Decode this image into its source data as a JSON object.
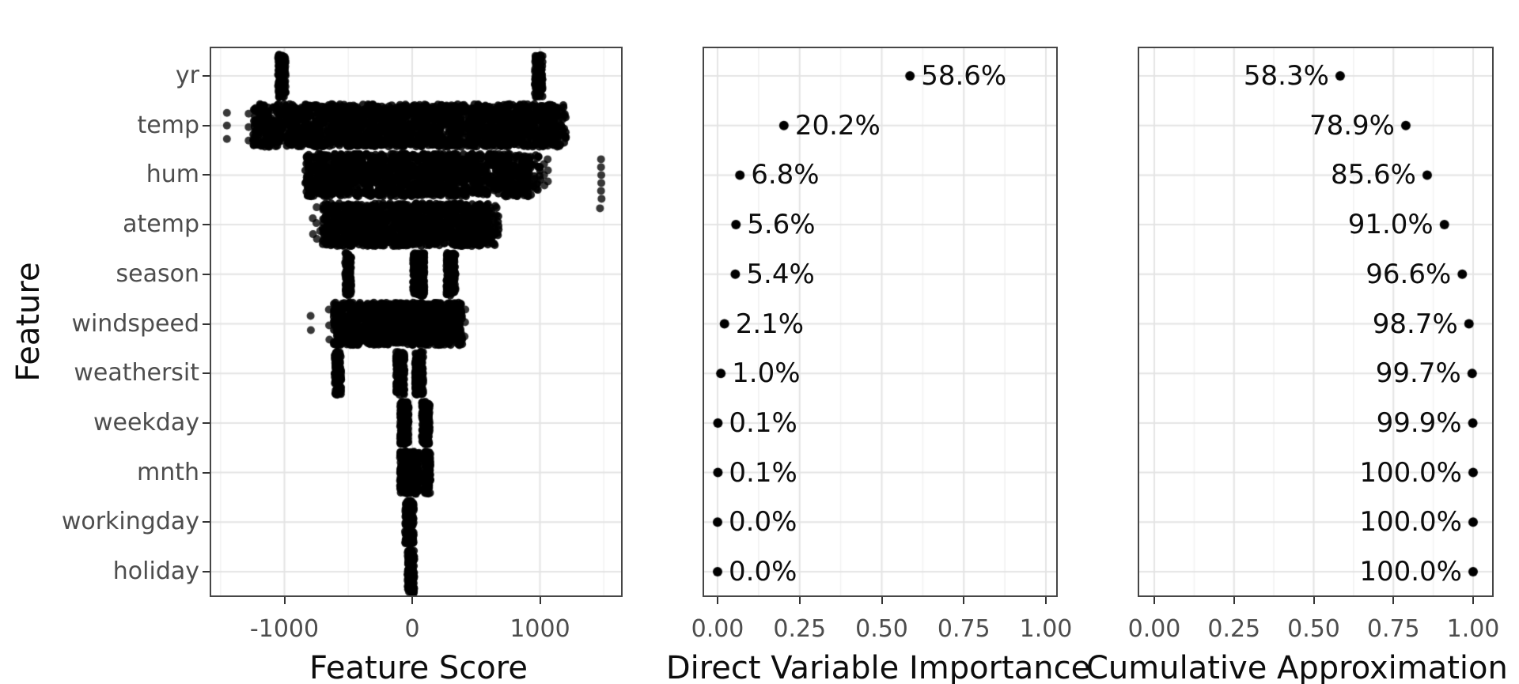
{
  "colors": {
    "background": "#ffffff",
    "panel_border": "#464646",
    "grid_major": "#e4e4e4",
    "grid_minor": "#f1f1f1",
    "axis_text": "#4d4d4d",
    "title_text": "#0d0d0d",
    "point": "#000000"
  },
  "features": [
    "yr",
    "temp",
    "hum",
    "atemp",
    "season",
    "windspeed",
    "weathersit",
    "weekday",
    "mnth",
    "workingday",
    "holiday"
  ],
  "chart_data": [
    {
      "type": "scatter",
      "subtype": "jittered-strip",
      "title": "",
      "xlabel": "Feature Score",
      "ylabel": "Feature",
      "categories": [
        "yr",
        "temp",
        "hum",
        "atemp",
        "season",
        "windspeed",
        "weathersit",
        "weekday",
        "mnth",
        "workingday",
        "holiday"
      ],
      "x_ticks": [
        -1000,
        0,
        1000
      ],
      "x_tick_labels": [
        "-1000",
        "0",
        "1000"
      ],
      "x_minor_ticks": [
        -1500,
        -500,
        500,
        1500
      ],
      "xlim": [
        -1573,
        1635
      ],
      "grid": true,
      "distributions": [
        {
          "feature": "yr",
          "segments": [
            [
              -1050,
              -990,
              140
            ],
            [
              960,
              1020,
              140
            ]
          ],
          "points": []
        },
        {
          "feature": "temp",
          "segments": [
            [
              -1245,
              -930,
              240
            ],
            [
              -930,
              1140,
              1950
            ],
            [
              1140,
              1208,
              26
            ]
          ],
          "points": [
            [
              -1450,
              -16
            ],
            [
              -1450,
              0
            ],
            [
              -1450,
              17
            ],
            [
              -1280,
              -15
            ],
            [
              -1280,
              2
            ],
            [
              -1280,
              19
            ]
          ]
        },
        {
          "feature": "hum",
          "segments": [
            [
              -838,
              918,
              1600
            ],
            [
              918,
              1005,
              28
            ]
          ],
          "points": [
            [
              1032,
              -14
            ],
            [
              1032,
              0
            ],
            [
              1035,
              13
            ],
            [
              1060,
              -20
            ],
            [
              1062,
              -6
            ],
            [
              1062,
              8
            ],
            [
              1478,
              -20
            ],
            [
              1478,
              -10
            ],
            [
              1480,
              0
            ],
            [
              1480,
              10
            ],
            [
              1478,
              20
            ],
            [
              1482,
              30
            ],
            [
              1470,
              42
            ]
          ]
        },
        {
          "feature": "atemp",
          "segments": [
            [
              -702,
              602,
              1250
            ],
            [
              602,
              678,
              32
            ]
          ],
          "points": [
            [
              -778,
              -8
            ],
            [
              -776,
              12
            ],
            [
              -748,
              -22
            ],
            [
              -750,
              -2
            ],
            [
              -746,
              18
            ],
            [
              -720,
              8
            ]
          ]
        },
        {
          "feature": "season",
          "segments": [
            [
              -525,
              -478,
              140
            ],
            [
              8,
              95,
              300
            ],
            [
              268,
              338,
              180
            ]
          ],
          "points": []
        },
        {
          "feature": "windspeed",
          "segments": [
            [
              -615,
              392,
              1300
            ]
          ],
          "points": [
            [
              -795,
              -10
            ],
            [
              -793,
              8
            ],
            [
              -652,
              -18
            ],
            [
              -650,
              2
            ],
            [
              -648,
              20
            ],
            [
              414,
              -2
            ],
            [
              410,
              16
            ],
            [
              416,
              -18
            ]
          ]
        },
        {
          "feature": "weathersit",
          "segments": [
            [
              -606,
              -556,
              140
            ],
            [
              -126,
              -60,
              190
            ],
            [
              22,
              86,
              190
            ]
          ],
          "points": []
        },
        {
          "feature": "weekday",
          "segments": [
            [
              -94,
              -28,
              190
            ],
            [
              76,
              136,
              190
            ]
          ],
          "points": []
        },
        {
          "feature": "mnth",
          "segments": [
            [
              -96,
              56,
              360
            ],
            [
              96,
              142,
              150
            ]
          ],
          "points": []
        },
        {
          "feature": "workingday",
          "segments": [
            [
              -56,
              12,
              200
            ]
          ],
          "points": []
        },
        {
          "feature": "holiday",
          "segments": [
            [
              -36,
              16,
              170
            ]
          ],
          "points": []
        }
      ]
    },
    {
      "type": "scatter",
      "subtype": "labeled-dot",
      "title": "",
      "xlabel": "Direct Variable Importance",
      "categories": [
        "yr",
        "temp",
        "hum",
        "atemp",
        "season",
        "windspeed",
        "weathersit",
        "weekday",
        "mnth",
        "workingday",
        "holiday"
      ],
      "values": [
        0.586,
        0.202,
        0.068,
        0.056,
        0.054,
        0.021,
        0.01,
        0.001,
        0.001,
        0.0,
        0.0
      ],
      "labels": [
        "58.6%",
        "20.2%",
        "6.8%",
        "5.6%",
        "5.4%",
        "2.1%",
        "1.0%",
        "0.1%",
        "0.1%",
        "0.0%",
        "0.0%"
      ],
      "label_side": "right",
      "x_ticks": [
        0,
        0.25,
        0.5,
        0.75,
        1
      ],
      "x_tick_labels": [
        "0.00",
        "0.25",
        "0.50",
        "0.75",
        "1.00"
      ],
      "x_minor_ticks": [
        0.125,
        0.375,
        0.625,
        0.875
      ],
      "xlim": [
        -0.041,
        1.031
      ],
      "grid": true
    },
    {
      "type": "scatter",
      "subtype": "labeled-dot",
      "title": "",
      "xlabel": "Cumulative Approximation F",
      "categories": [
        "yr",
        "temp",
        "hum",
        "atemp",
        "season",
        "windspeed",
        "weathersit",
        "weekday",
        "mnth",
        "workingday",
        "holiday"
      ],
      "values": [
        0.583,
        0.789,
        0.856,
        0.91,
        0.966,
        0.987,
        0.997,
        0.999,
        1.0,
        1.0,
        1.0
      ],
      "labels": [
        "58.3%",
        "78.9%",
        "85.6%",
        "91.0%",
        "96.6%",
        "98.7%",
        "99.7%",
        "99.9%",
        "100.0%",
        "100.0%",
        "100.0%"
      ],
      "label_side": "left",
      "x_ticks": [
        0,
        0.25,
        0.5,
        0.75,
        1
      ],
      "x_tick_labels": [
        "0.00",
        "0.25",
        "0.50",
        "0.75",
        "1.00"
      ],
      "x_minor_ticks": [
        0.125,
        0.375,
        0.625,
        0.875
      ],
      "xlim": [
        -0.047,
        1.06
      ],
      "grid": true
    }
  ]
}
